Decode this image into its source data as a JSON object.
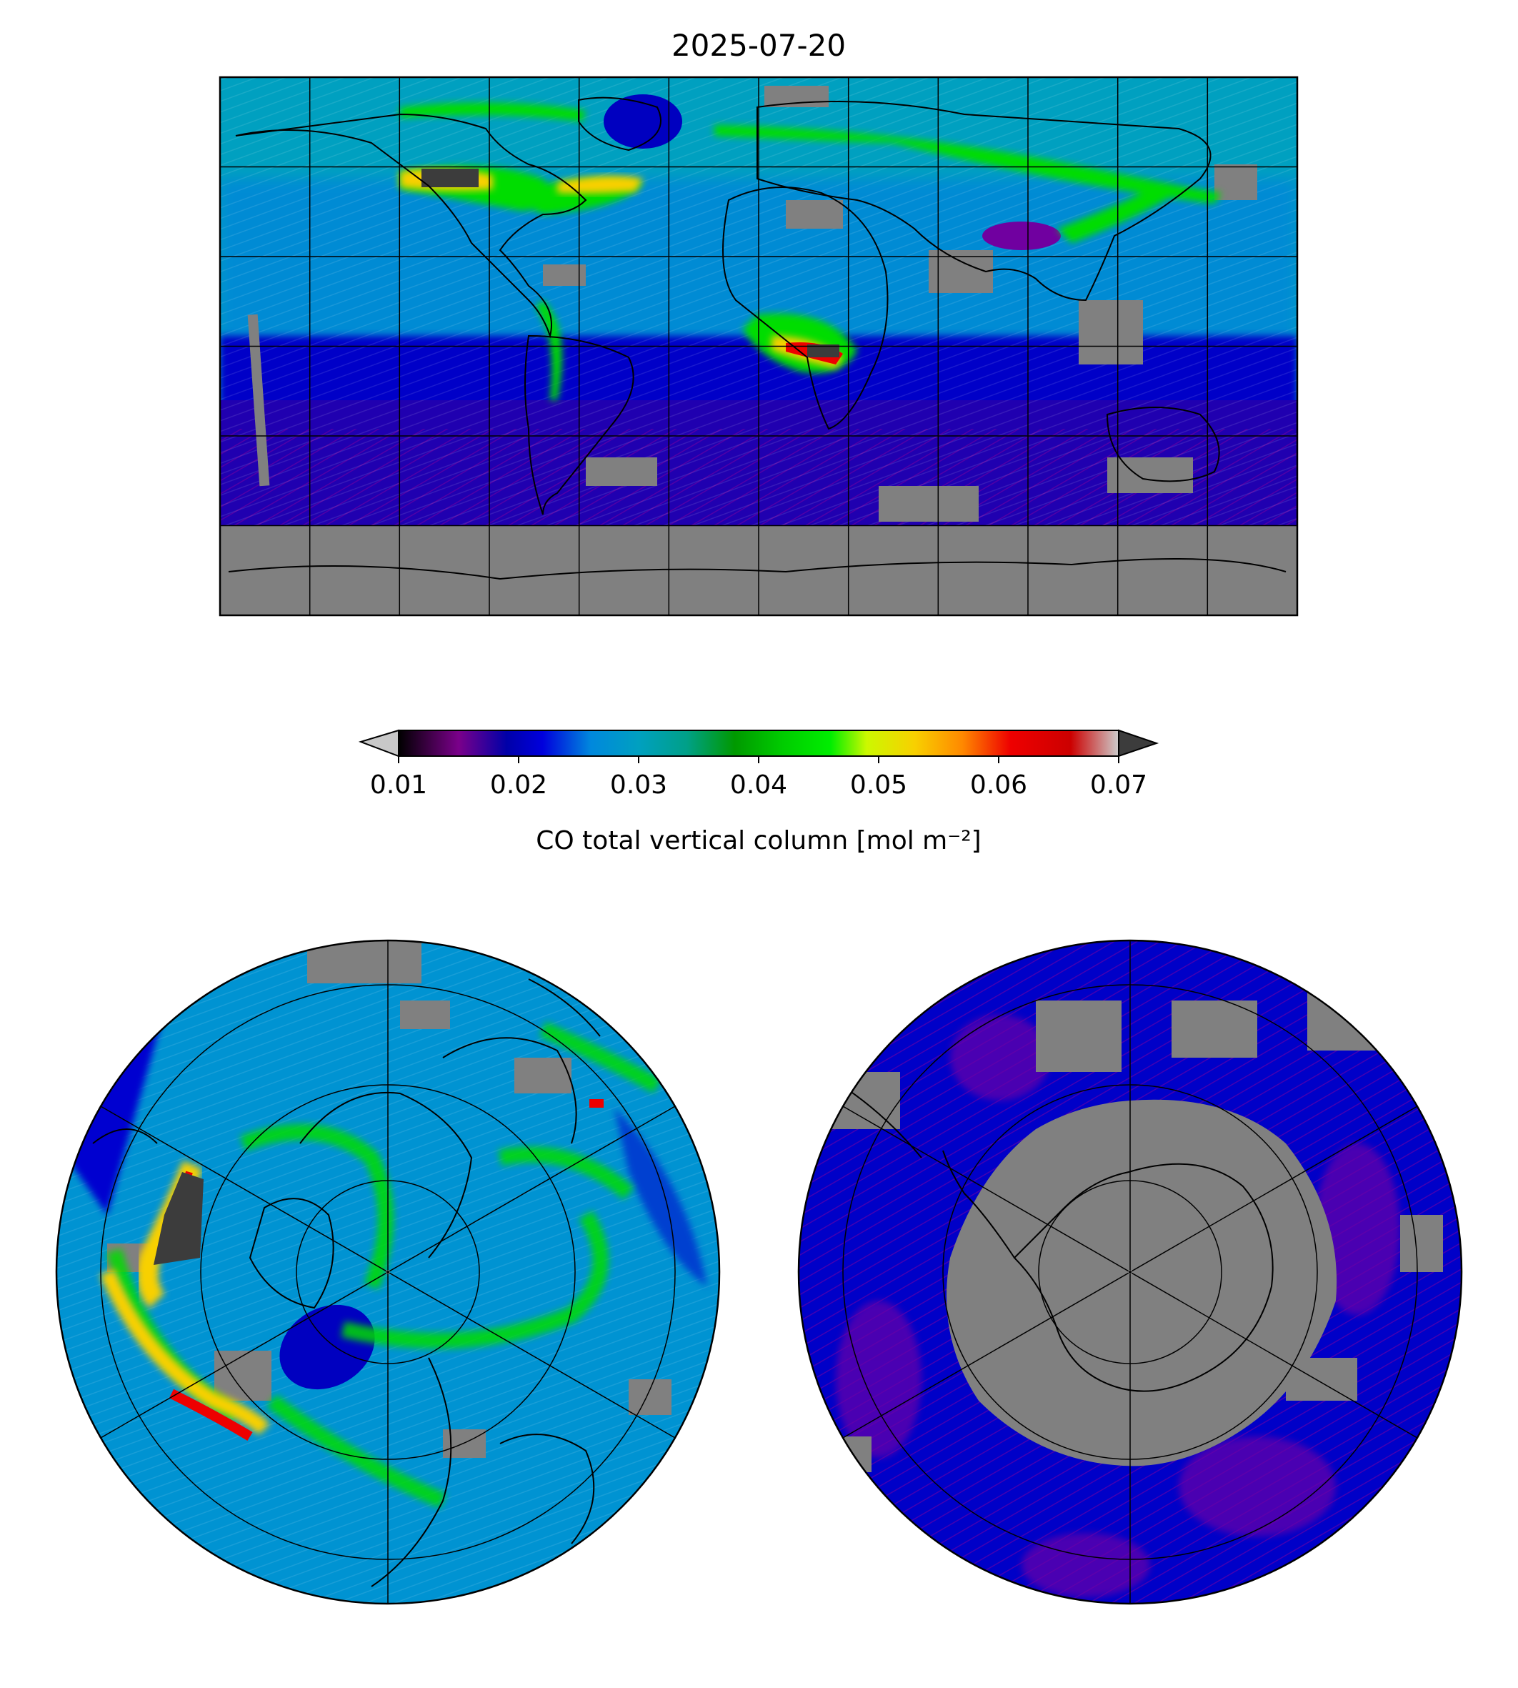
{
  "figure": {
    "title": "2025-07-20"
  },
  "colorbar": {
    "label": "CO total vertical column [mol m⁻²]",
    "ticks": [
      "0.01",
      "0.02",
      "0.03",
      "0.04",
      "0.05",
      "0.06",
      "0.07"
    ],
    "min": 0.01,
    "max": 0.07,
    "extend": "both",
    "under_color": "#c8c8c8",
    "over_color": "#3c3c3c",
    "stops": [
      {
        "v": 0.01,
        "color": "#000000"
      },
      {
        "v": 0.015,
        "color": "#7a008a"
      },
      {
        "v": 0.019,
        "color": "#0000a8"
      },
      {
        "v": 0.022,
        "color": "#0000dd"
      },
      {
        "v": 0.026,
        "color": "#0088dd"
      },
      {
        "v": 0.03,
        "color": "#00a0c0"
      },
      {
        "v": 0.034,
        "color": "#00a088"
      },
      {
        "v": 0.038,
        "color": "#009900"
      },
      {
        "v": 0.042,
        "color": "#00cc00"
      },
      {
        "v": 0.046,
        "color": "#00ee00"
      },
      {
        "v": 0.049,
        "color": "#ccf800"
      },
      {
        "v": 0.053,
        "color": "#f8d000"
      },
      {
        "v": 0.057,
        "color": "#ff8800"
      },
      {
        "v": 0.061,
        "color": "#ee0000"
      },
      {
        "v": 0.066,
        "color": "#cc0000"
      },
      {
        "v": 0.07,
        "color": "#cccccc"
      }
    ]
  },
  "maps": {
    "global": {
      "projection": "PlateCarree",
      "no_data_color": "#808080",
      "gridlines": true
    },
    "north_polar": {
      "projection": "North Polar Stereographic",
      "no_data_color": "#808080",
      "gridlines": true
    },
    "south_polar": {
      "projection": "South Polar Stereographic",
      "no_data_color": "#808080",
      "gridlines": true
    }
  },
  "colors": {
    "background_field": "#00a0c0",
    "southern_field": "#0000c8",
    "land_nodata": "#808080",
    "coastline": "#000000",
    "gridline": "#000000"
  }
}
